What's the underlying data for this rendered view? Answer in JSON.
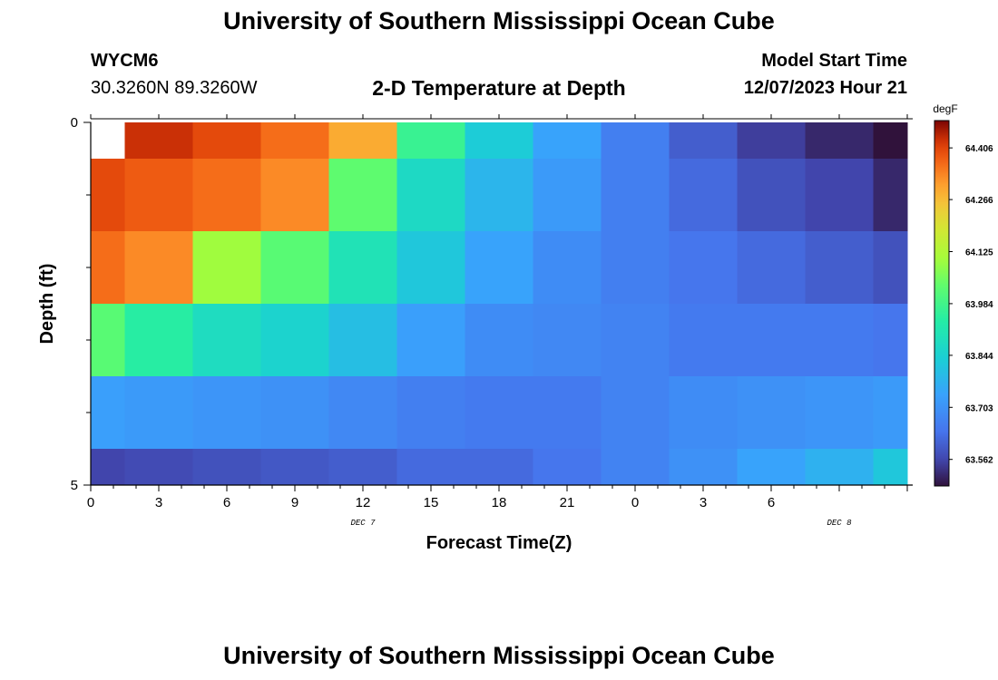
{
  "header": {
    "title": "University of Southern Mississippi Ocean Cube",
    "station_id": "WYCM6",
    "station_coords": "30.3260N  89.3260W",
    "chart_subtitle": "2-D Temperature at Depth",
    "model_start_label": "Model Start Time",
    "model_start_value": "12/07/2023 Hour 21"
  },
  "footer": {
    "title": "University of Southern Mississippi Ocean Cube"
  },
  "chart_data": {
    "type": "heatmap",
    "title": "2-D Temperature at Depth",
    "xlabel": "Forecast Time(Z)",
    "ylabel": "Depth (ft)",
    "x_tick_labels": [
      "0",
      "3",
      "6",
      "9",
      "12",
      "15",
      "18",
      "21",
      "0",
      "3",
      "6"
    ],
    "x_range_hours": [
      0,
      36
    ],
    "date_labels": [
      {
        "text": "DEC 7",
        "at_hour": 12
      },
      {
        "text": "DEC 8",
        "at_hour": 33
      }
    ],
    "y_tick_labels": [
      "0",
      "5"
    ],
    "y_range_ft": [
      0,
      5
    ],
    "y_minor_ticks_ft": [
      0,
      1,
      2,
      3,
      4,
      5
    ],
    "column_edges_hours": [
      0,
      1.5,
      4.5,
      7.5,
      10.5,
      13.5,
      16.5,
      19.5,
      22.5,
      25.5,
      28.5,
      31.5,
      34.5,
      36
    ],
    "row_edges_ft": [
      0,
      0.5,
      1.5,
      2.5,
      3.5,
      4.5,
      5
    ],
    "colorbar": {
      "unit": "degF",
      "min": 63.49,
      "max": 64.48,
      "tick_labels": [
        "64.406",
        "64.266",
        "64.125",
        "63.984",
        "63.844",
        "63.703",
        "63.562"
      ]
    },
    "values": [
      [
        null,
        64.43,
        64.4,
        64.36,
        64.29,
        63.97,
        63.83,
        63.74,
        63.66,
        63.6,
        63.55,
        63.52,
        63.46
      ],
      [
        64.4,
        64.38,
        64.36,
        64.33,
        64.03,
        63.87,
        63.78,
        63.72,
        63.66,
        63.62,
        63.58,
        63.56,
        63.52
      ],
      [
        64.36,
        64.33,
        64.1,
        64.02,
        63.9,
        63.82,
        63.74,
        63.69,
        63.66,
        63.64,
        63.62,
        63.6,
        63.58
      ],
      [
        64.02,
        63.94,
        63.88,
        63.85,
        63.8,
        63.73,
        63.69,
        63.68,
        63.67,
        63.65,
        63.65,
        63.65,
        63.64
      ],
      [
        63.73,
        63.72,
        63.71,
        63.7,
        63.68,
        63.66,
        63.65,
        63.65,
        63.67,
        63.69,
        63.7,
        63.71,
        63.72
      ],
      [
        63.56,
        63.57,
        63.58,
        63.59,
        63.6,
        63.62,
        63.62,
        63.64,
        63.67,
        63.7,
        63.74,
        63.77,
        63.82
      ]
    ]
  }
}
